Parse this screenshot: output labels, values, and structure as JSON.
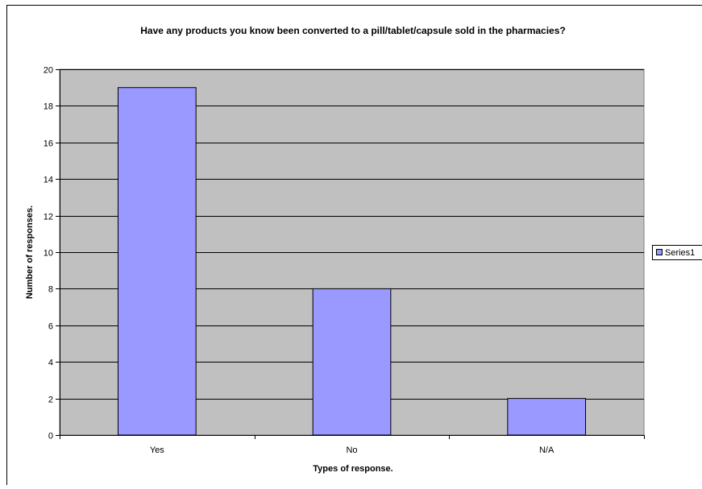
{
  "chart_data": {
    "type": "bar",
    "title": "Have any products you know been converted to a pill/tablet/capsule sold in the pharmacies?",
    "xlabel": "Types of response.",
    "ylabel": "Number of responses.",
    "categories": [
      "Yes",
      "No",
      "N/A"
    ],
    "series": [
      {
        "name": "Series1",
        "values": [
          19,
          8,
          2
        ]
      }
    ],
    "ylim": [
      0,
      20
    ],
    "yticks": [
      0,
      2,
      4,
      6,
      8,
      10,
      12,
      14,
      16,
      18,
      20
    ],
    "grid": true,
    "legend": "right",
    "colors": {
      "plot_background": "#c0c0c0",
      "bar_fill": "#9999ff",
      "bar_stroke": "#000000",
      "gridline": "#000000"
    }
  }
}
